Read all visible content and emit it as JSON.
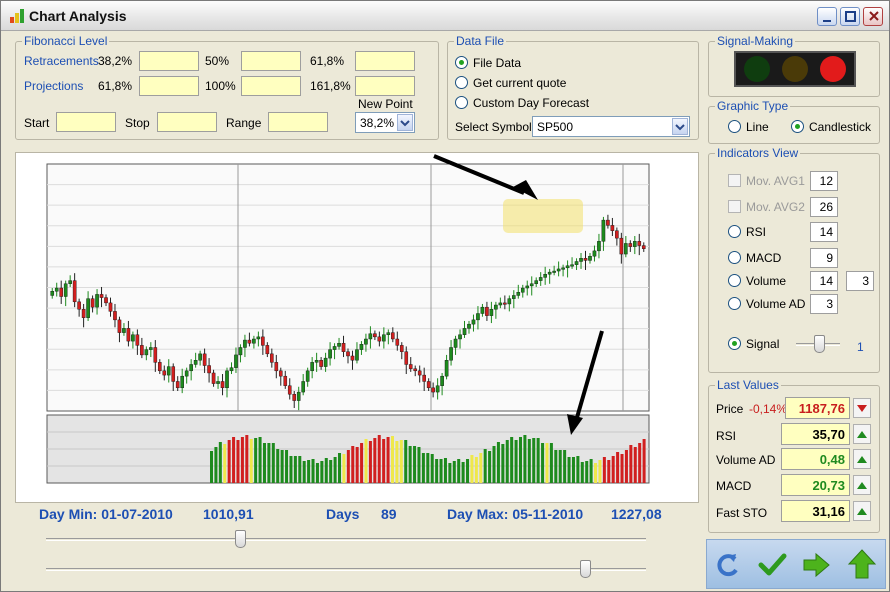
{
  "window": {
    "title": "Chart Analysis"
  },
  "fibonacci": {
    "legend": "Fibonacci Level",
    "retracements_label": "Retracements",
    "retracements": [
      "38,2%",
      "50%",
      "61,8%"
    ],
    "projections_label": "Projections",
    "projections": [
      "61,8%",
      "100%",
      "161,8%"
    ],
    "start_label": "Start",
    "stop_label": "Stop",
    "range_label": "Range",
    "new_point_label": "New Point",
    "new_point_value": "38,2%"
  },
  "data_file": {
    "legend": "Data File",
    "options": [
      "File Data",
      "Get current quote",
      "Custom Day Forecast"
    ],
    "selected": 0,
    "select_symbol_label": "Select Symbol",
    "symbol": "SP500"
  },
  "signal_making": {
    "legend": "Signal-Making",
    "lights": [
      "#0f3d0f",
      "#4a3a08",
      "#e21b1b"
    ]
  },
  "graphic_type": {
    "legend": "Graphic Type",
    "options": [
      "Line",
      "Candlestick"
    ],
    "selected": 1
  },
  "indicators": {
    "legend": "Indicators View",
    "mov_avg1_label": "Mov. AVG1",
    "mov_avg1": "12",
    "mov_avg2_label": "Mov. AVG2",
    "mov_avg2": "26",
    "rsi_label": "RSI",
    "rsi": "14",
    "macd_label": "MACD",
    "macd": "9",
    "volume_label": "Volume",
    "volume": "14",
    "volume2": "3",
    "volume_ad_label": "Volume AD",
    "volume_ad": "3",
    "signal_label": "Signal",
    "signal_value": "1"
  },
  "stats": {
    "day_min_label": "Day Min: 01-07-2010",
    "day_min_value": "1010,91",
    "days_label": "Days",
    "days_value": "89",
    "day_max_label": "Day Max: 05-11-2010",
    "day_max_value": "1227,08"
  },
  "last_values": {
    "legend": "Last Values",
    "price_label": "Price",
    "price_change": "-0,14%",
    "price": "1187,76",
    "rsi_label": "RSI",
    "rsi": "35,70",
    "volume_ad_label": "Volume AD",
    "volume_ad": "0,48",
    "macd_label": "MACD",
    "macd": "20,73",
    "fast_sto_label": "Fast STO",
    "fast_sto": "31,16"
  },
  "toolbar_icons": [
    "refresh-icon",
    "check-icon",
    "forward-arrow-icon",
    "up-arrow-icon"
  ],
  "chart_data": {
    "type": "candlestick",
    "closes": [
      1115,
      1118,
      1110,
      1122,
      1125,
      1105,
      1098,
      1090,
      1108,
      1100,
      1112,
      1109,
      1104,
      1096,
      1088,
      1076,
      1080,
      1068,
      1074,
      1064,
      1055,
      1060,
      1062,
      1048,
      1040,
      1036,
      1044,
      1030,
      1024,
      1035,
      1040,
      1046,
      1050,
      1056,
      1045,
      1038,
      1028,
      1030,
      1024,
      1040,
      1043,
      1055,
      1062,
      1069,
      1066,
      1070,
      1072,
      1064,
      1056,
      1048,
      1040,
      1035,
      1026,
      1018,
      1012,
      1020,
      1030,
      1040,
      1048,
      1050,
      1044,
      1052,
      1060,
      1063,
      1066,
      1058,
      1054,
      1050,
      1060,
      1065,
      1070,
      1075,
      1072,
      1068,
      1074,
      1076,
      1070,
      1064,
      1058,
      1046,
      1042,
      1040,
      1036,
      1030,
      1024,
      1020,
      1026,
      1035,
      1050,
      1062,
      1070,
      1074,
      1080,
      1084,
      1088,
      1094,
      1100,
      1092,
      1098,
      1102,
      1104,
      1103,
      1108,
      1111,
      1114,
      1118,
      1120,
      1122,
      1125,
      1128,
      1131,
      1133,
      1134,
      1136,
      1137,
      1139,
      1140,
      1143,
      1146,
      1144,
      1148,
      1153,
      1162,
      1182,
      1177,
      1172,
      1165,
      1150,
      1160,
      1157,
      1162,
      1158,
      1155
    ],
    "volume_colors": [
      "green",
      "green",
      "green",
      "yellow",
      "red",
      "red",
      "red",
      "red",
      "red",
      "yellow",
      "green",
      "green",
      "green",
      "green",
      "green",
      "green",
      "green",
      "green",
      "green",
      "green",
      "green",
      "green",
      "green",
      "green",
      "green",
      "green",
      "green",
      "green",
      "green",
      "green",
      "yellow",
      "red",
      "red",
      "red",
      "red",
      "yellow",
      "red",
      "red",
      "red",
      "red",
      "red",
      "yellow",
      "yellow",
      "yellow",
      "green",
      "green",
      "green",
      "green",
      "green",
      "green",
      "green",
      "green",
      "green",
      "green",
      "green",
      "green",
      "green",
      "green",
      "green",
      "yellow",
      "yellow",
      "yellow",
      "green",
      "green",
      "green",
      "green",
      "green",
      "green",
      "green",
      "green",
      "green",
      "green",
      "green",
      "green",
      "green",
      "green",
      "yellow",
      "green",
      "green",
      "green",
      "green",
      "green",
      "green",
      "green",
      "green",
      "green",
      "green",
      "yellow",
      "yellow",
      "red",
      "red",
      "red",
      "red",
      "red",
      "red",
      "red",
      "red",
      "red",
      "red"
    ]
  }
}
